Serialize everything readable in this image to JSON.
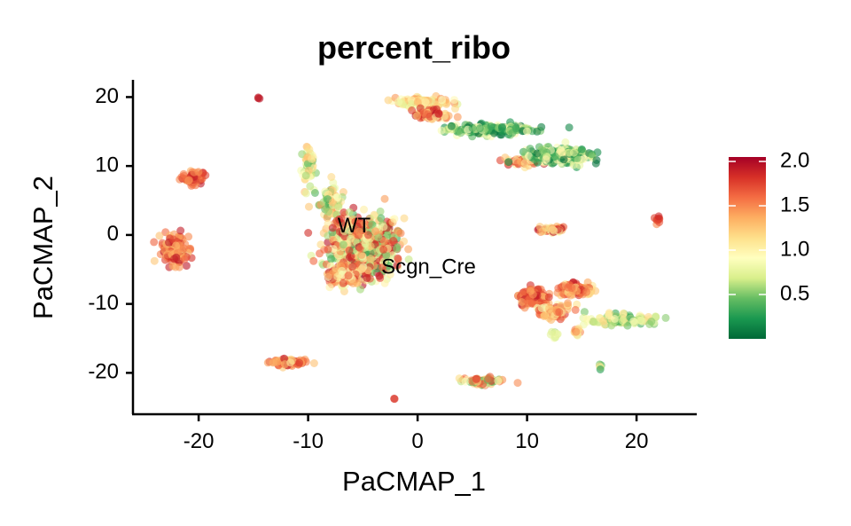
{
  "chart_data": {
    "type": "scatter",
    "title": "percent_ribo",
    "xlabel": "PaCMAP_1",
    "ylabel": "PaCMAP_2",
    "xlim": [
      -26,
      25.5
    ],
    "ylim": [
      -26,
      22.5
    ],
    "x_ticks": [
      -20,
      -10,
      0,
      10,
      20
    ],
    "y_ticks": [
      -20,
      -10,
      0,
      10,
      20
    ],
    "x_tick_labels": [
      "-20",
      "-10",
      "0",
      "10",
      "20"
    ],
    "y_tick_labels": [
      "-20",
      "-10",
      "0",
      "10",
      "20"
    ],
    "grid": false,
    "color_scale": {
      "min": 0,
      "max": 2.05,
      "ticks": [
        0.5,
        1.0,
        1.5,
        2.0
      ],
      "tick_labels": [
        "0.5",
        "1.0",
        "1.5",
        "2.0"
      ],
      "colors": [
        "#006837",
        "#1a9850",
        "#66bd63",
        "#d9ef8b",
        "#ffffbf",
        "#fee08b",
        "#fdae61",
        "#f46d43",
        "#d73027",
        "#a50026"
      ],
      "position": "right"
    },
    "annotations": [
      {
        "text": "WT",
        "x": -5.8,
        "y": 1.2
      },
      {
        "text": "Scgn_Cre",
        "x": 1.0,
        "y": -4.8
      }
    ],
    "clusters": [
      {
        "cx": -14.5,
        "cy": 19.8,
        "sx": 0.25,
        "sy": 0.25,
        "n": 3,
        "v": [
          1.8,
          2.0
        ]
      },
      {
        "cx": -20.5,
        "cy": 8.3,
        "sx": 1.0,
        "sy": 0.8,
        "n": 55,
        "v": [
          1.3,
          2.0
        ]
      },
      {
        "cx": -22.2,
        "cy": -2.2,
        "sx": 0.9,
        "sy": 1.7,
        "n": 160,
        "v": [
          1.2,
          2.0
        ]
      },
      {
        "cx": -12.0,
        "cy": -18.5,
        "sx": 1.3,
        "sy": 0.45,
        "n": 90,
        "v": [
          1.0,
          2.0
        ]
      },
      {
        "cx": -10.0,
        "cy": 10.0,
        "sx": 0.5,
        "sy": 2.2,
        "n": 60,
        "v": [
          0.4,
          1.4
        ]
      },
      {
        "cx": -8.0,
        "cy": 5.0,
        "sx": 0.8,
        "sy": 1.8,
        "n": 90,
        "v": [
          0.3,
          1.5
        ]
      },
      {
        "cx": -5.0,
        "cy": -1.5,
        "sx": 2.5,
        "sy": 3.3,
        "n": 780,
        "v": [
          0.3,
          2.0
        ]
      },
      {
        "cx": -6.5,
        "cy": -6.0,
        "sx": 1.6,
        "sy": 1.3,
        "n": 120,
        "v": [
          0.8,
          2.0
        ]
      },
      {
        "cx": -2.2,
        "cy": -23.7,
        "sx": 0.15,
        "sy": 0.15,
        "n": 2,
        "v": [
          1.7,
          1.9
        ]
      },
      {
        "cx": 0.5,
        "cy": 19.2,
        "sx": 2.0,
        "sy": 0.55,
        "n": 120,
        "v": [
          0.6,
          1.5
        ]
      },
      {
        "cx": 1.2,
        "cy": 17.5,
        "sx": 1.5,
        "sy": 0.8,
        "n": 70,
        "v": [
          1.0,
          2.0
        ]
      },
      {
        "cx": 6.5,
        "cy": 15.3,
        "sx": 3.2,
        "sy": 0.6,
        "n": 170,
        "v": [
          0.0,
          1.0
        ]
      },
      {
        "cx": 10.0,
        "cy": 10.7,
        "sx": 1.6,
        "sy": 0.5,
        "n": 70,
        "v": [
          1.0,
          2.0
        ]
      },
      {
        "cx": 13.0,
        "cy": 11.5,
        "sx": 2.3,
        "sy": 0.9,
        "n": 260,
        "v": [
          0.0,
          1.1
        ]
      },
      {
        "cx": 22.0,
        "cy": 2.2,
        "sx": 0.2,
        "sy": 0.5,
        "n": 10,
        "v": [
          1.5,
          1.9
        ]
      },
      {
        "cx": 12.3,
        "cy": 0.8,
        "sx": 1.0,
        "sy": 0.4,
        "n": 45,
        "v": [
          0.7,
          2.0
        ]
      },
      {
        "cx": 10.6,
        "cy": -9.0,
        "sx": 1.0,
        "sy": 1.1,
        "n": 120,
        "v": [
          1.3,
          2.0
        ]
      },
      {
        "cx": 14.5,
        "cy": -8.0,
        "sx": 1.4,
        "sy": 0.7,
        "n": 110,
        "v": [
          1.0,
          2.0
        ]
      },
      {
        "cx": 12.5,
        "cy": -11.0,
        "sx": 1.5,
        "sy": 0.8,
        "n": 80,
        "v": [
          0.8,
          1.8
        ]
      },
      {
        "cx": 18.5,
        "cy": -12.3,
        "sx": 2.3,
        "sy": 0.6,
        "n": 120,
        "v": [
          0.3,
          1.2
        ]
      },
      {
        "cx": 12.6,
        "cy": -14.5,
        "sx": 0.3,
        "sy": 0.5,
        "n": 8,
        "v": [
          0.4,
          1.0
        ]
      },
      {
        "cx": 14.6,
        "cy": -14.0,
        "sx": 0.4,
        "sy": 0.5,
        "n": 12,
        "v": [
          0.8,
          1.7
        ]
      },
      {
        "cx": 16.7,
        "cy": -18.8,
        "sx": 0.15,
        "sy": 0.4,
        "n": 5,
        "v": [
          0.2,
          1.2
        ]
      },
      {
        "cx": 5.8,
        "cy": -21.2,
        "sx": 1.3,
        "sy": 0.45,
        "n": 75,
        "v": [
          0.3,
          1.8
        ]
      }
    ]
  }
}
